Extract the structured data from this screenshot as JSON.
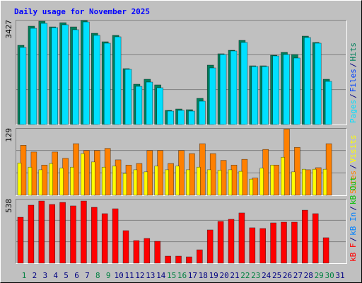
{
  "chart_data": [
    {
      "type": "bar",
      "title": "Daily usage for November 2025",
      "categories": [
        "1",
        "2",
        "3",
        "4",
        "5",
        "6",
        "7",
        "8",
        "9",
        "10",
        "11",
        "12",
        "13",
        "14",
        "15",
        "16",
        "17",
        "18",
        "19",
        "20",
        "21",
        "22",
        "23",
        "24",
        "25",
        "26",
        "27",
        "28",
        "29",
        "30",
        "31"
      ],
      "category_colors": [
        "#008040",
        "#000080",
        "#000080",
        "#000080",
        "#000080",
        "#000080",
        "#000080",
        "#008040",
        "#008040",
        "#000080",
        "#000080",
        "#000080",
        "#000080",
        "#000080",
        "#008040",
        "#008040",
        "#000080",
        "#000080",
        "#000080",
        "#000080",
        "#000080",
        "#008040",
        "#008040",
        "#000080",
        "#000080",
        "#000080",
        "#000080",
        "#000080",
        "#008040",
        "#008040",
        "#000080"
      ],
      "legend_separator": "/",
      "ylim": [
        0,
        3427
      ],
      "yticks": [
        3427
      ],
      "series": [
        {
          "name": "Pages",
          "color": "#00e0ff",
          "values": [
            2524,
            3149,
            3311,
            3172,
            3265,
            3103,
            3357,
            2918,
            2663,
            2871,
            1806,
            1250,
            1389,
            1204,
            440,
            463,
            440,
            764,
            1852,
            2292,
            2408,
            2686,
            1899,
            1899,
            2246,
            2292,
            2177,
            2848,
            2663,
            1412,
            0
          ]
        },
        {
          "name": "Files",
          "color": "#0040ff",
          "values": [
            null,
            null,
            null,
            null,
            null,
            null,
            null,
            null,
            null,
            null,
            null,
            null,
            null,
            null,
            null,
            null,
            null,
            null,
            null,
            null,
            null,
            null,
            null,
            null,
            null,
            null,
            null,
            null,
            null,
            null,
            null
          ]
        },
        {
          "name": "Hits",
          "color": "#00805c",
          "values": [
            2593,
            3219,
            3381,
            3195,
            3334,
            3195,
            3404,
            2987,
            2709,
            2918,
            1829,
            1320,
            1482,
            1297,
            463,
            509,
            486,
            857,
            1945,
            2316,
            2431,
            2755,
            1922,
            1922,
            2269,
            2362,
            2292,
            2894,
            2686,
            1482,
            0
          ]
        }
      ]
    },
    {
      "type": "bar",
      "ylim": [
        0,
        129
      ],
      "yticks": [
        129
      ],
      "series": [
        {
          "name": "Sites",
          "color": "#ff8000",
          "values": [
            96,
            83,
            58,
            83,
            71,
            99,
            86,
            86,
            90,
            68,
            58,
            61,
            86,
            86,
            61,
            86,
            80,
            99,
            80,
            67,
            58,
            69,
            33,
            88,
            58,
            127,
            92,
            49,
            53,
            99,
            0
          ]
        },
        {
          "name": "Visits",
          "color": "#ffff00",
          "values": [
            62,
            54,
            49,
            61,
            52,
            54,
            80,
            64,
            54,
            56,
            42,
            49,
            45,
            56,
            49,
            56,
            49,
            54,
            49,
            48,
            49,
            46,
            31,
            52,
            58,
            73,
            45,
            50,
            50,
            50,
            0
          ]
        }
      ]
    },
    {
      "type": "bar",
      "ylim": [
        0,
        538
      ],
      "yticks": [
        538
      ],
      "series": [
        {
          "name": "kB F",
          "color": "#ff0000",
          "values": [
            384,
            485,
            520,
            491,
            508,
            479,
            520,
            467,
            414,
            455,
            272,
            189,
            207,
            183,
            59,
            59,
            53,
            112,
            278,
            349,
            367,
            420,
            296,
            290,
            337,
            343,
            343,
            443,
            414,
            213,
            0
          ]
        },
        {
          "name": "kB In",
          "color": "#0080ff",
          "values": [
            null,
            null,
            null,
            null,
            null,
            null,
            null,
            null,
            null,
            null,
            null,
            null,
            null,
            null,
            null,
            null,
            null,
            null,
            null,
            null,
            null,
            null,
            null,
            null,
            null,
            null,
            null,
            null,
            null,
            null,
            null
          ]
        },
        {
          "name": "kB Out",
          "color": "#00c000",
          "values": [
            null,
            null,
            null,
            null,
            null,
            null,
            null,
            null,
            null,
            null,
            null,
            null,
            null,
            null,
            null,
            null,
            null,
            null,
            null,
            null,
            null,
            null,
            null,
            null,
            null,
            null,
            null,
            null,
            null,
            null,
            null
          ]
        }
      ]
    }
  ]
}
